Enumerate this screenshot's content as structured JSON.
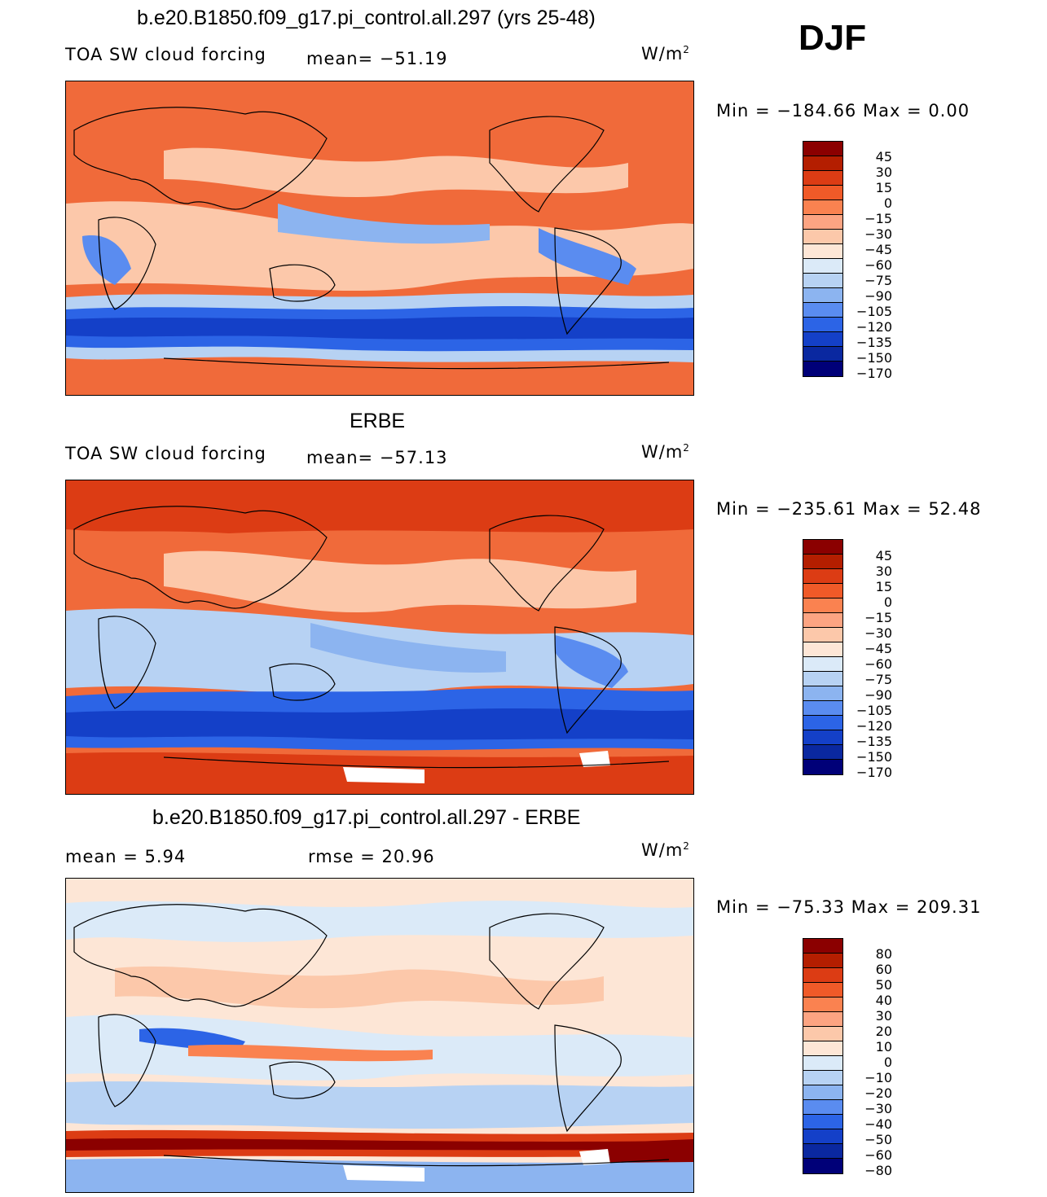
{
  "season": "DJF",
  "units": {
    "base": "W/m",
    "exp": "2"
  },
  "panels": [
    {
      "title": "b.e20.B1850.f09_g17.pi_control.all.297 (yrs 25-48)",
      "left_label": "TOA SW cloud forcing",
      "center_label": "mean= −51.19",
      "minmax": "Min  =  −184.66  Max  =     0.00",
      "ticks": [
        "45",
        "30",
        "15",
        "0",
        "−15",
        "−30",
        "−45",
        "−60",
        "−75",
        "−90",
        "−105",
        "−120",
        "−135",
        "−150",
        "−170"
      ],
      "colors": [
        "#8b0000",
        "#b41e00",
        "#dc3c14",
        "#f05a28",
        "#fa8250",
        "#fca482",
        "#fcc8aa",
        "#fde6d6",
        "#dbeaf8",
        "#b7d2f3",
        "#8cb4f0",
        "#5a8cf0",
        "#2c64e6",
        "#1440c8",
        "#0a28a0",
        "#000078"
      ]
    },
    {
      "title": "ERBE",
      "left_label": "TOA SW cloud forcing",
      "center_label": "mean= −57.13",
      "minmax": "Min  =  −235.61  Max  =    52.48",
      "ticks": [
        "45",
        "30",
        "15",
        "0",
        "−15",
        "−30",
        "−45",
        "−60",
        "−75",
        "−90",
        "−105",
        "−120",
        "−135",
        "−150",
        "−170"
      ],
      "colors": [
        "#8b0000",
        "#b41e00",
        "#dc3c14",
        "#f05a28",
        "#fa8250",
        "#fca482",
        "#fcc8aa",
        "#fde6d6",
        "#dbeaf8",
        "#b7d2f3",
        "#8cb4f0",
        "#5a8cf0",
        "#2c64e6",
        "#1440c8",
        "#0a28a0",
        "#000078"
      ]
    },
    {
      "title": "b.e20.B1850.f09_g17.pi_control.all.297 - ERBE",
      "left_label": "mean  =      5.94",
      "center_label": "rmse  =    20.96",
      "minmax": "Min  =  −75.33  Max  =  209.31",
      "ticks": [
        "80",
        "60",
        "50",
        "40",
        "30",
        "20",
        "10",
        "0",
        "−10",
        "−20",
        "−30",
        "−40",
        "−50",
        "−60",
        "−80"
      ],
      "colors": [
        "#8b0000",
        "#b41e00",
        "#dc3c14",
        "#f05a28",
        "#fa8250",
        "#fca482",
        "#fcc8aa",
        "#fde6d6",
        "#dbeaf8",
        "#b7d2f3",
        "#8cb4f0",
        "#5a8cf0",
        "#2c64e6",
        "#1440c8",
        "#0a28a0",
        "#000078"
      ]
    }
  ],
  "chart_data": {
    "type": "heatmap",
    "variable": "TOA SW cloud forcing",
    "season": "DJF",
    "panels": [
      {
        "name": "b.e20.B1850.f09_g17.pi_control.all.297 (yrs 25-48)",
        "mean": -51.19,
        "min": -184.66,
        "max": 0.0
      },
      {
        "name": "ERBE",
        "mean": -57.13,
        "min": -235.61,
        "max": 52.48
      },
      {
        "name": "b.e20.B1850.f09_g17.pi_control.all.297 - ERBE",
        "mean": 5.94,
        "rmse": 20.96,
        "min": -75.33,
        "max": 209.31
      }
    ]
  }
}
